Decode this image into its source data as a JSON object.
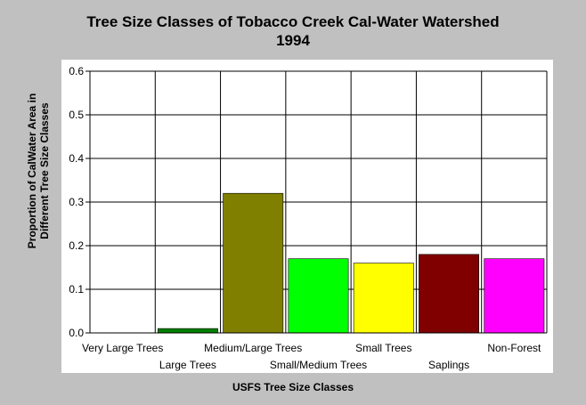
{
  "chart_data": {
    "type": "bar",
    "title_lines": [
      "Tree Size Classes of Tobacco Creek Cal-Water Watershed",
      "1994"
    ],
    "ylabel_lines": [
      "Proportion of CalWater Area in",
      "Different Tree Size Classes"
    ],
    "xlabel": "USFS Tree Size Classes",
    "categories": [
      "Very Large Trees",
      "Large Trees",
      "Medium/Large Trees",
      "Small/Medium Trees",
      "Small Trees",
      "Saplings",
      "Non-Forest"
    ],
    "values": [
      0,
      0.01,
      0.32,
      0.17,
      0.16,
      0.18,
      0.17
    ],
    "colors": [
      "#008000",
      "#008000",
      "#808000",
      "#00ff00",
      "#ffff00",
      "#800000",
      "#ff00ff"
    ],
    "ylim": [
      0,
      0.6
    ],
    "yticks": [
      "0.0",
      "0.1",
      "0.2",
      "0.3",
      "0.4",
      "0.5",
      "0.6"
    ],
    "grid": true,
    "legend": "none",
    "background": "#c0c0c0",
    "plot_background": "#ffffff"
  }
}
